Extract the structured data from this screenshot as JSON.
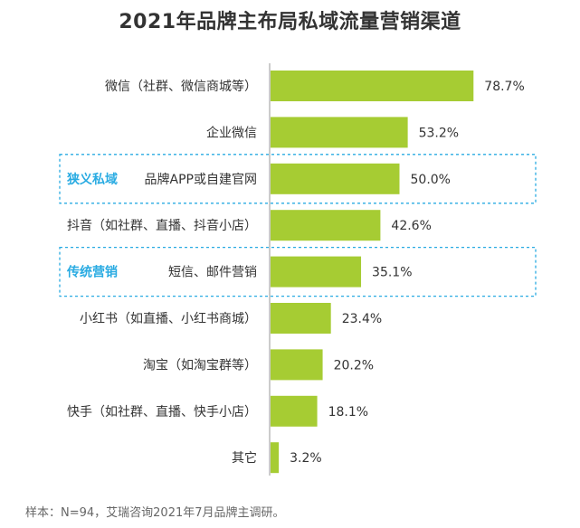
{
  "chart_data": {
    "type": "bar",
    "orientation": "horizontal",
    "title": "2021年品牌主布局私域流量营销渠道",
    "categories": [
      "微信（社群、微信商城等）",
      "企业微信",
      "品牌APP或自建官网",
      "抖音（如社群、直播、抖音小店）",
      "短信、邮件营销",
      "小红书（如直播、小红书商城）",
      "淘宝（如淘宝群等）",
      "快手（如社群、直播、快手小店）",
      "其它"
    ],
    "values": [
      78.7,
      53.2,
      50.0,
      42.6,
      35.1,
      23.4,
      20.2,
      18.1,
      3.2
    ],
    "value_labels": [
      "78.7%",
      "53.2%",
      "50.0%",
      "42.6%",
      "35.1%",
      "23.4%",
      "20.2%",
      "18.1%",
      "3.2%"
    ],
    "xlim": [
      0,
      100
    ],
    "xlabel": "",
    "ylabel": "",
    "grid": false,
    "bar_color": "#a6cc33",
    "highlight_groups": [
      {
        "label": "狭义私域",
        "category_index": 2,
        "color": "#29abe2"
      },
      {
        "label": "传统营销",
        "category_index": 4,
        "color": "#29abe2"
      }
    ]
  },
  "footer": {
    "source": "样本：N=94，艾瑞咨询2021年7月品牌主调研。"
  }
}
